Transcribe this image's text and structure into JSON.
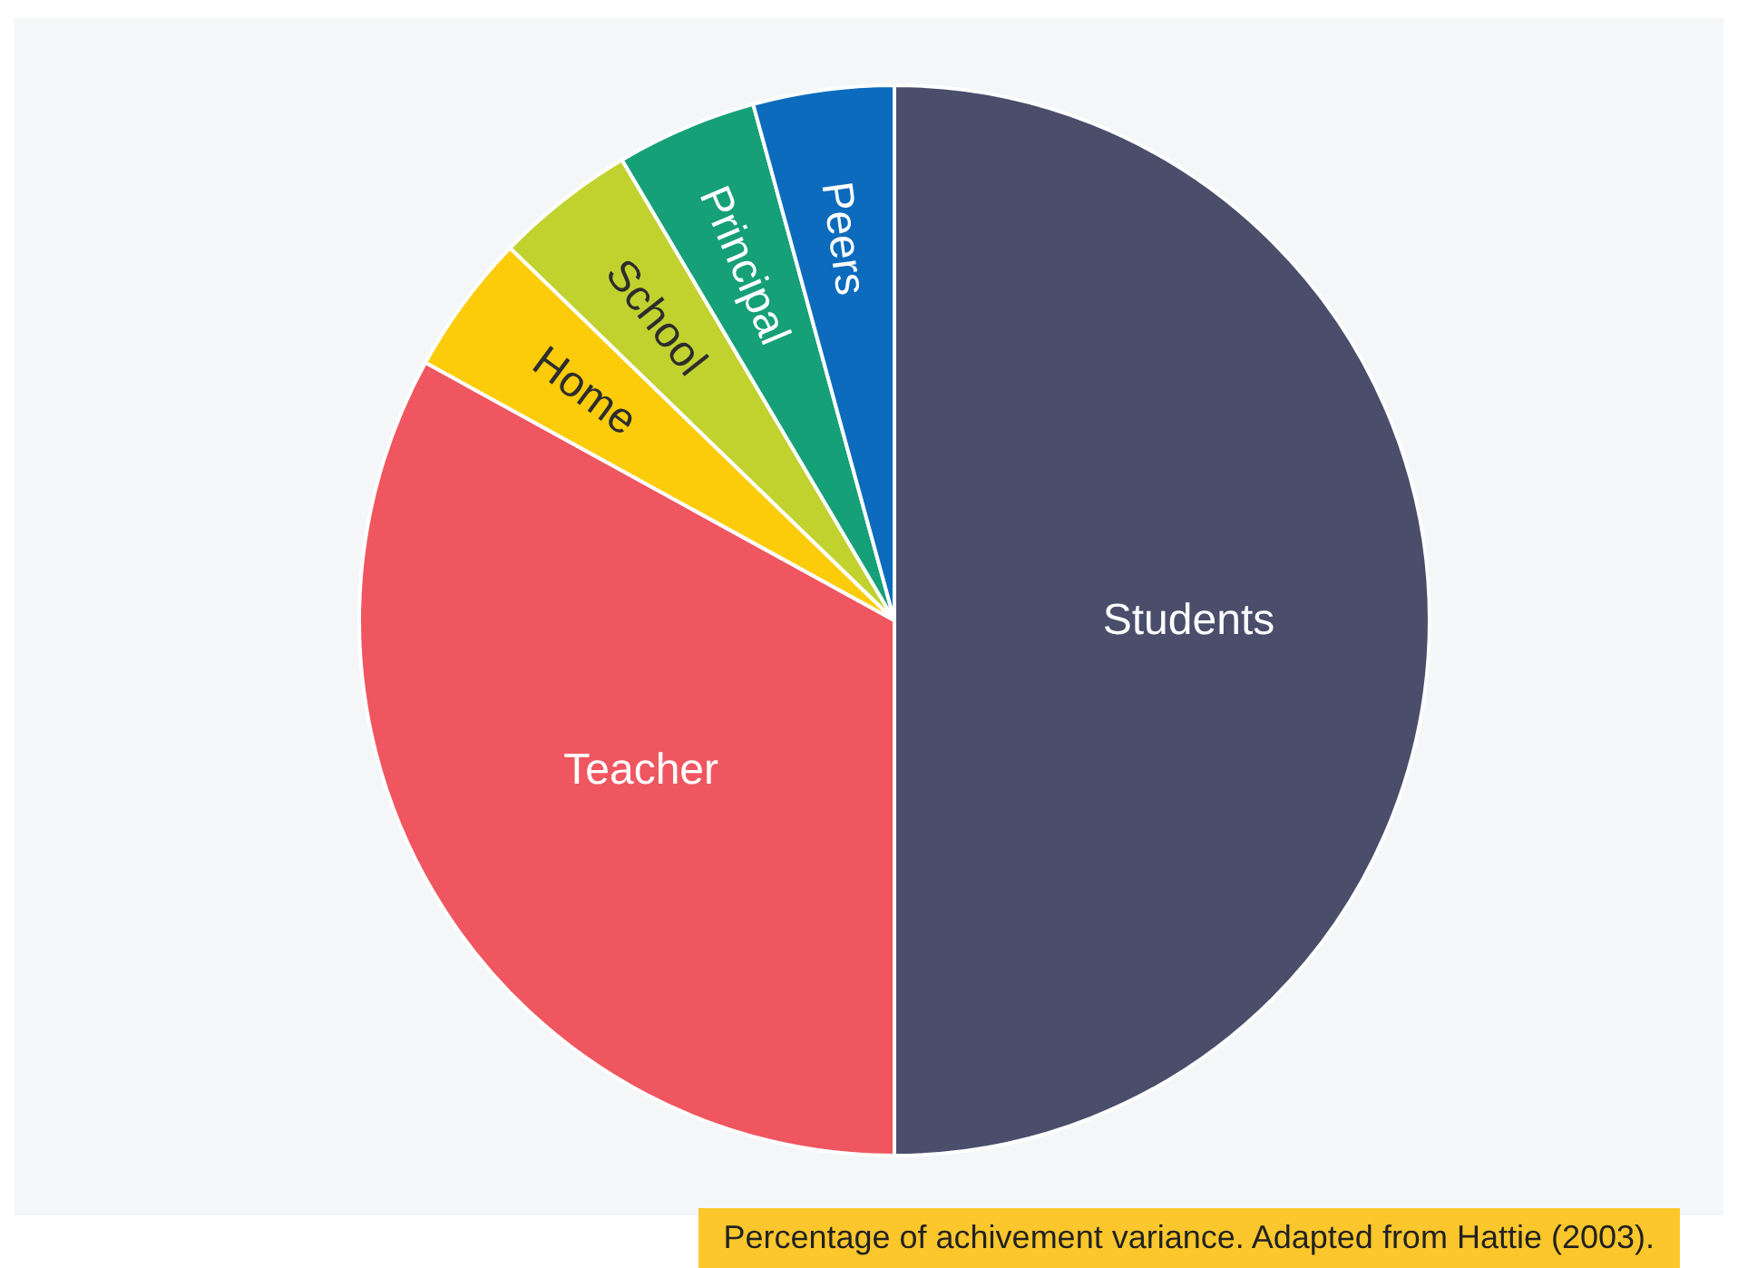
{
  "chart_data": {
    "type": "pie",
    "categories": [
      "Students",
      "Teacher",
      "Home",
      "School",
      "Principal",
      "Peers"
    ],
    "values": [
      50,
      33,
      4.25,
      4.25,
      4.25,
      4.25
    ],
    "colors": [
      "#4a4e6b",
      "#f05660",
      "#fccc0a",
      "#c1d22f",
      "#16a077",
      "#0c6bbd"
    ],
    "data_labels": false,
    "annotations": [
      "Percentage of achivement variance. Adapted from Hattie (2003)."
    ]
  }
}
